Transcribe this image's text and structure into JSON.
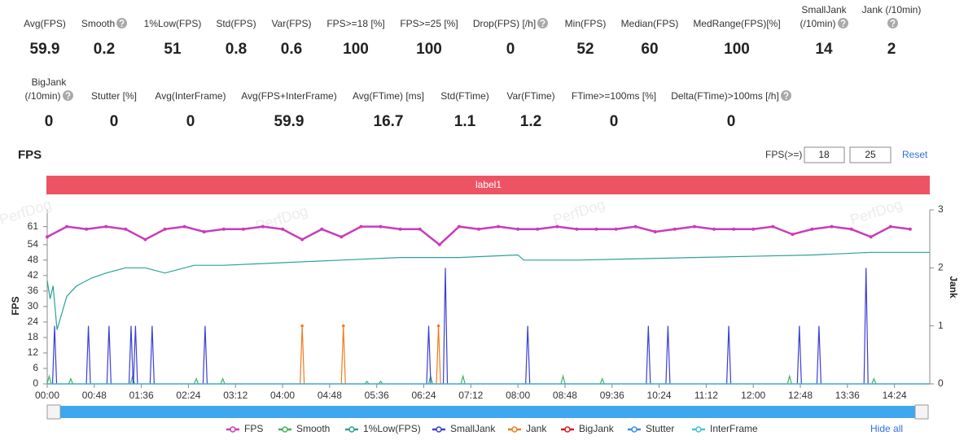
{
  "stats": [
    [
      {
        "label": "Avg(FPS)",
        "value": 59.9
      },
      {
        "label": "Smooth",
        "value": 0.2
      },
      {
        "label": "1%Low(FPS)",
        "value": 51
      },
      {
        "label": "Std(FPS)",
        "value": 0.8
      },
      {
        "label": "Var(FPS)",
        "value": 0.6
      },
      {
        "label": "FPS>=18 [%]",
        "value": 100
      },
      {
        "label": "FPS>=25 [%]",
        "value": 100
      },
      {
        "label": "Drop(FPS) [/h]",
        "value": 0
      },
      {
        "label": "Min(FPS)",
        "value": 52
      },
      {
        "label": "Median(FPS)",
        "value": 60
      },
      {
        "label": "MedRange(FPS)[%]",
        "value": 100
      },
      {
        "label": "SmallJank (/10min)",
        "value": 14
      },
      {
        "label": "Jank (/10min)",
        "value": 2
      }
    ],
    [
      {
        "label": "BigJank (/10min)",
        "value": 0
      },
      {
        "label": "Stutter [%]",
        "value": 0
      },
      {
        "label": "Avg(InterFrame)",
        "value": 0
      },
      {
        "label": "Avg(FPS+InterFrame)",
        "value": 59.9
      },
      {
        "label": "Avg(FTime) [ms]",
        "value": 16.7
      },
      {
        "label": "Std(FTime)",
        "value": 1.1
      },
      {
        "label": "Var(FTime)",
        "value": 1.2
      },
      {
        "label": "FTime>=100ms [%]",
        "value": 0
      },
      {
        "label": "Delta(FTime)>100ms [/h]",
        "value": 0
      }
    ]
  ],
  "chart_data": {
    "type": "line",
    "title": "FPS",
    "threshold_label": "FPS(>=)",
    "thresholds": [
      18,
      25
    ],
    "reset": "Reset",
    "band_label": "label1",
    "watermark": "PerfDog",
    "ylabel": "FPS",
    "y2label": "Jank",
    "hide_all": "Hide all",
    "xlim": [
      0,
      900
    ],
    "xticks": [
      {
        "value": 0,
        "label": "00:00"
      },
      {
        "value": 48,
        "label": "00:48"
      },
      {
        "value": 96,
        "label": "01:36"
      },
      {
        "value": 144,
        "label": "02:24"
      },
      {
        "value": 192,
        "label": "03:12"
      },
      {
        "value": 240,
        "label": "04:00"
      },
      {
        "value": 288,
        "label": "04:48"
      },
      {
        "value": 336,
        "label": "05:36"
      },
      {
        "value": 384,
        "label": "06:24"
      },
      {
        "value": 432,
        "label": "07:12"
      },
      {
        "value": 480,
        "label": "08:00"
      },
      {
        "value": 528,
        "label": "08:48"
      },
      {
        "value": 576,
        "label": "09:36"
      },
      {
        "value": 624,
        "label": "10:24"
      },
      {
        "value": 672,
        "label": "11:12"
      },
      {
        "value": 720,
        "label": "12:00"
      },
      {
        "value": 768,
        "label": "12:48"
      },
      {
        "value": 816,
        "label": "13:36"
      },
      {
        "value": 864,
        "label": "14:24"
      }
    ],
    "ylim": [
      0,
      67.5
    ],
    "yticks": [
      0,
      6,
      12,
      18,
      24,
      30,
      36,
      42,
      48,
      54,
      61
    ],
    "y2lim": [
      0,
      3
    ],
    "y2ticks": [
      0,
      1,
      2,
      3
    ],
    "series": [
      {
        "name": "FPS",
        "color": "#c83cb9",
        "x": [
          0,
          20,
          40,
          60,
          80,
          100,
          120,
          140,
          160,
          180,
          200,
          220,
          240,
          260,
          280,
          300,
          320,
          340,
          360,
          380,
          400,
          420,
          440,
          460,
          480,
          500,
          520,
          540,
          560,
          580,
          600,
          620,
          640,
          660,
          680,
          700,
          720,
          740,
          760,
          780,
          800,
          820,
          840,
          860,
          880
        ],
        "values": [
          57,
          61,
          60,
          61,
          60,
          56,
          60,
          61,
          59,
          60,
          60,
          61,
          60,
          56,
          60,
          57,
          61,
          61,
          60,
          60,
          54,
          61,
          60,
          61,
          60,
          60,
          61,
          60,
          60,
          60,
          61,
          59,
          60,
          61,
          60,
          60,
          60,
          61,
          58,
          60,
          61,
          60,
          57,
          61,
          60
        ]
      },
      {
        "name": "Smooth",
        "color": "#3db55a",
        "x": [
          2,
          24,
          87,
          152,
          179,
          326,
          340,
          391,
          424,
          526,
          566,
          757,
          843
        ],
        "values": [
          3,
          2,
          3,
          2,
          2,
          1,
          1,
          3,
          3,
          3,
          2,
          3,
          2
        ]
      },
      {
        "name": "1%Low(FPS)",
        "color": "#2aa198",
        "x": [
          0,
          3,
          6,
          10,
          20,
          30,
          45,
          60,
          80,
          100,
          120,
          150,
          180,
          240,
          300,
          360,
          420,
          480,
          486,
          540,
          600,
          660,
          720,
          780,
          840,
          900
        ],
        "values": [
          40,
          33,
          38,
          21,
          34,
          38,
          41,
          43,
          45,
          45,
          43,
          46,
          46,
          47,
          48,
          49,
          49,
          50,
          48,
          48,
          48.5,
          49,
          49.5,
          50,
          51,
          51
        ]
      },
      {
        "name": "SmallJank",
        "color": "#3b3fd4",
        "axis": "y2",
        "x": [
          7.5,
          42,
          63,
          85.5,
          90,
          107,
          161,
          389,
          406,
          490,
          613,
          633,
          695,
          767,
          787,
          835
        ],
        "values": [
          1,
          1,
          1,
          1,
          1,
          1,
          1,
          1,
          2,
          1,
          1,
          1,
          1,
          1,
          1,
          2
        ]
      },
      {
        "name": "Jank",
        "color": "#f07c1e",
        "axis": "y2",
        "x": [
          260,
          302,
          399
        ],
        "values": [
          1,
          1,
          1
        ]
      },
      {
        "name": "BigJank",
        "color": "#d7191c",
        "axis": "y2",
        "x": [
          0,
          900
        ],
        "values": [
          0,
          0
        ]
      },
      {
        "name": "Stutter",
        "color": "#3c8ee0",
        "axis": "y2",
        "x": [
          0,
          900
        ],
        "values": [
          0,
          0
        ]
      },
      {
        "name": "InterFrame",
        "color": "#3ec6d8",
        "x": [
          0,
          900
        ],
        "values": [
          0,
          0
        ]
      }
    ]
  }
}
